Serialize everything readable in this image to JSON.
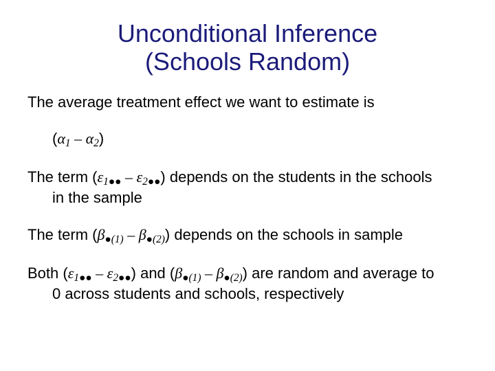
{
  "colors": {
    "title": "#1b1b7a",
    "body": "#000000",
    "background": "#ffffff"
  },
  "typography": {
    "title_fontsize": 36,
    "body_fontsize": 22,
    "title_font": "Arial",
    "math_font": "Times New Roman"
  },
  "title": {
    "line1": "Unconditional Inference",
    "line2": "(Schools Random)"
  },
  "p1": {
    "text": "The average treatment effect we want to estimate is"
  },
  "eq1": {
    "open": "(",
    "a": "α",
    "s1": "1",
    "minus": " – ",
    "b": "α",
    "s2": "2",
    "close": ")"
  },
  "p2": {
    "pre": "The term ",
    "open": "(",
    "e": "ε",
    "s1": "1",
    "dots": "●●",
    "minus": " – ",
    "e2": "ε",
    "s2": "2",
    "close": ")",
    "post1": " depends on the students in the schools",
    "post2": "in the sample"
  },
  "p3": {
    "pre": "The term ",
    "open": "(",
    "b": "β",
    "dot": "●",
    "s1": "(1)",
    "minus": " – ",
    "b2": "β",
    "s2": "(2)",
    "close": ")",
    "post": " depends on the schools in sample"
  },
  "p4": {
    "pre": "Both ",
    "open1": "(",
    "e": "ε",
    "s1": "1",
    "dots": "●●",
    "minus": " – ",
    "e2": "ε",
    "s2": "2",
    "close1": ")",
    "and": " and ",
    "open2": "(",
    "b": "β",
    "dot": "●",
    "s3": "(1)",
    "b2": "β",
    "s4": "(2)",
    "close2": ")",
    "post1": " are random and average to",
    "post2": "0 across students and schools, respectively"
  }
}
